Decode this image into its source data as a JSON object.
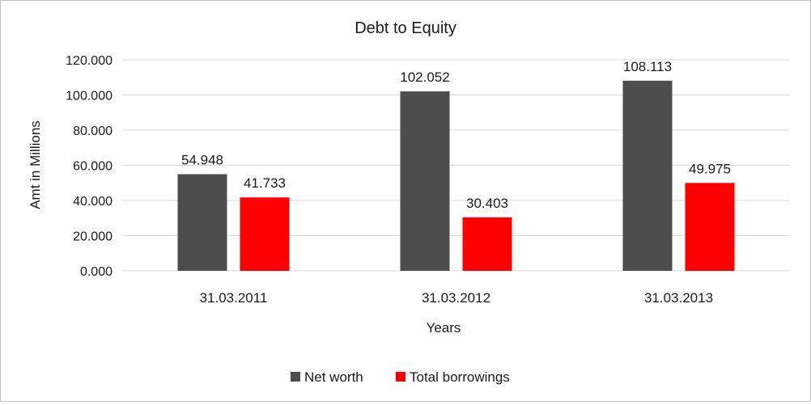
{
  "chart_data": {
    "type": "bar",
    "title": "Debt to Equity",
    "xlabel": "Years",
    "ylabel": "Amt in Millions",
    "categories": [
      "31.03.2011",
      "31.03.2012",
      "31.03.2013"
    ],
    "series": [
      {
        "name": "Net worth",
        "color": "#4d4d4d",
        "values": [
          54.948,
          102.052,
          108.113
        ],
        "labels": [
          "54.948",
          "102.052",
          "108.113"
        ]
      },
      {
        "name": "Total borrowings",
        "color": "#ff0000",
        "values": [
          41.733,
          30.403,
          49.975
        ],
        "labels": [
          "41.733",
          "30.403",
          "49.975"
        ]
      }
    ],
    "ylim": [
      0,
      120
    ],
    "yticks": [
      0,
      20,
      40,
      60,
      80,
      100,
      120
    ],
    "ytick_labels": [
      "0.000",
      "20.000",
      "40.000",
      "60.000",
      "80.000",
      "100.000",
      "120.000"
    ],
    "grid": true,
    "legend_position": "bottom",
    "gridline_color": "#d9d9d9"
  }
}
